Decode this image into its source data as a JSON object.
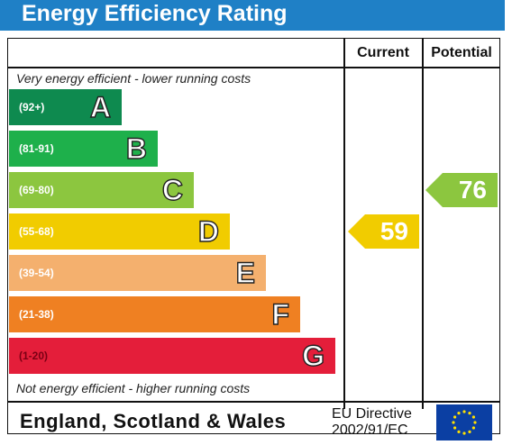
{
  "title": "Energy Efficiency Rating",
  "columns": {
    "current": "Current",
    "potential": "Potential"
  },
  "captions": {
    "top": "Very energy efficient - lower running costs",
    "bottom": "Not energy efficient - higher running costs"
  },
  "footer": {
    "country": "England, Scotland & Wales",
    "eu_line1": "EU Directive",
    "eu_line2": "2002/91/EC"
  },
  "colors": {
    "title_bar": "#1f80c6",
    "A": "#0e8a4f",
    "B": "#1eb04b",
    "C": "#8cc63f",
    "D": "#f1cc00",
    "E": "#f4b06e",
    "F": "#ef8022",
    "G": "#e41e3a",
    "eu_flag": "#0b3fa3",
    "eu_stars": "#ffe000"
  },
  "chart_data": {
    "type": "bar",
    "title": "Energy Efficiency Rating",
    "bands": [
      {
        "letter": "A",
        "range": "(92+)"
      },
      {
        "letter": "B",
        "range": "(81-91)"
      },
      {
        "letter": "C",
        "range": "(69-80)"
      },
      {
        "letter": "D",
        "range": "(55-68)"
      },
      {
        "letter": "E",
        "range": "(39-54)"
      },
      {
        "letter": "F",
        "range": "(21-38)"
      },
      {
        "letter": "G",
        "range": "(1-20)"
      }
    ],
    "current": {
      "value": 59,
      "band": "D"
    },
    "potential": {
      "value": 76,
      "band": "C"
    }
  }
}
